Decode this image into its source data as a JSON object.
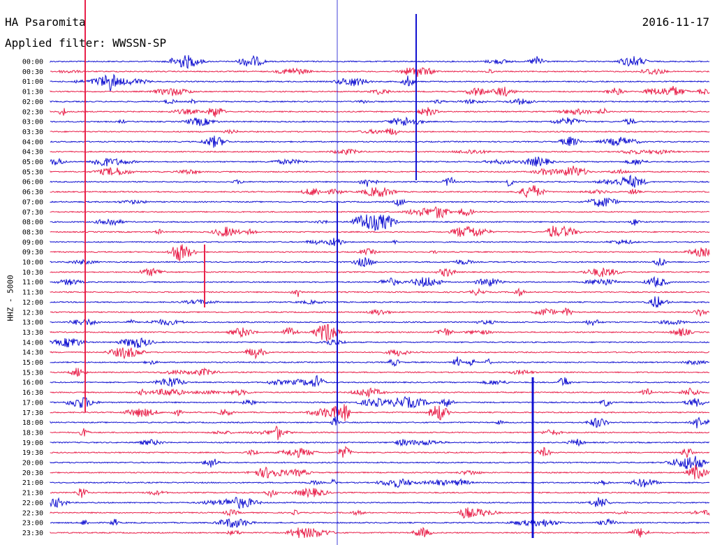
{
  "header": {
    "station": "HA Psaromita",
    "filter": "Applied filter: WWSSN-SP",
    "date": "2016-11-17"
  },
  "chart_data": {
    "type": "line",
    "title": "HA Psaromita",
    "ylabel": "HHZ - 5000",
    "row_labels": [
      "00:00",
      "00:30",
      "01:00",
      "01:30",
      "02:00",
      "02:30",
      "03:00",
      "03:30",
      "04:00",
      "04:30",
      "05:00",
      "05:30",
      "06:00",
      "06:30",
      "07:00",
      "07:30",
      "08:00",
      "08:30",
      "09:00",
      "09:30",
      "10:00",
      "10:30",
      "11:00",
      "11:30",
      "12:00",
      "12:30",
      "13:00",
      "13:30",
      "14:00",
      "14:30",
      "15:00",
      "15:30",
      "16:00",
      "16:30",
      "17:00",
      "17:30",
      "18:00",
      "18:30",
      "19:00",
      "19:30",
      "20:00",
      "20:30",
      "21:00",
      "21:30",
      "22:00",
      "22:30",
      "23:00",
      "23:30"
    ],
    "colors": {
      "even": "#1010d0",
      "odd": "#e8204a"
    }
  }
}
